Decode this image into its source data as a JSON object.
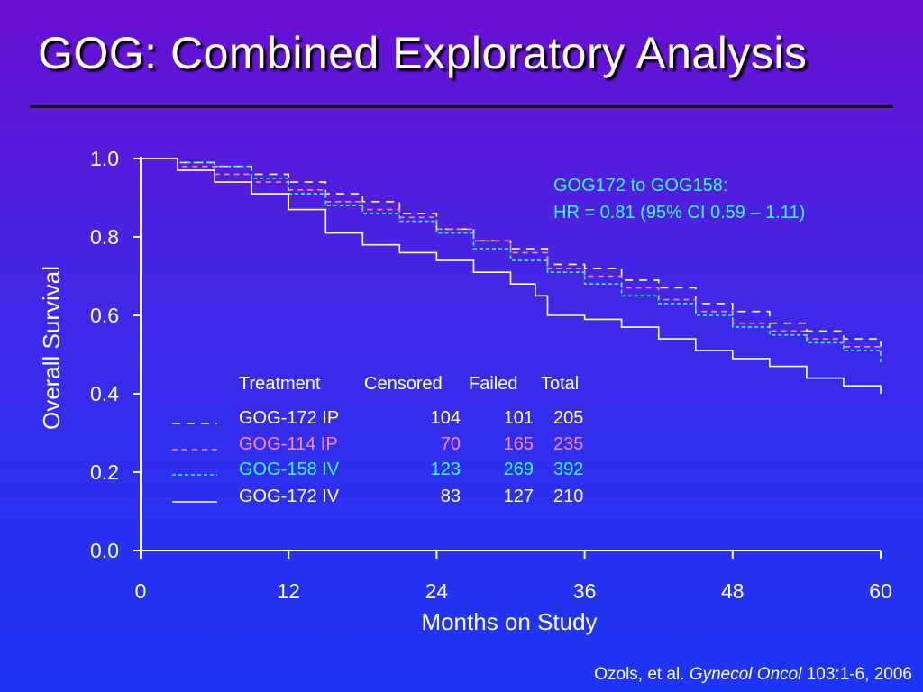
{
  "slide": {
    "title": "GOG:  Combined Exploratory Analysis",
    "citation_authors": "Ozols, et al.",
    "citation_journal": "Gynecol Oncol",
    "citation_ref": "103:1-6, 2006"
  },
  "colors": {
    "axis": "#ffffff",
    "gog172ip": "#ffff66",
    "gog114ip": "#ff88cc",
    "gog158iv": "#33ffdd",
    "gog172iv": "#ffffff"
  },
  "chart_data": {
    "type": "line",
    "xlabel": "Months on Study",
    "ylabel": "Overall Survival",
    "xlim": [
      0,
      60
    ],
    "ylim": [
      0,
      1.0
    ],
    "x_ticks": [
      "0",
      "12",
      "24",
      "36",
      "48",
      "60"
    ],
    "y_ticks": [
      "0.0",
      "0.2",
      "0.4",
      "0.6",
      "0.8",
      "1.0"
    ],
    "annotation": [
      "GOG172 to GOG158:",
      "HR = 0.81 (95% CI 0.59 – 1.11)"
    ],
    "table_headers": [
      "Treatment",
      "Censored",
      "Failed",
      "Total"
    ],
    "series": [
      {
        "name": "GOG-172 IP",
        "censored": "104",
        "failed": "101",
        "total": "205",
        "color": "#ffff66",
        "dash": "long",
        "x": [
          0,
          3,
          6,
          9,
          12,
          15,
          18,
          21,
          24,
          27,
          30,
          33,
          36,
          39,
          42,
          45,
          48,
          51,
          54,
          57,
          60
        ],
        "y": [
          1.0,
          0.99,
          0.98,
          0.96,
          0.94,
          0.91,
          0.89,
          0.86,
          0.82,
          0.79,
          0.77,
          0.73,
          0.72,
          0.69,
          0.67,
          0.63,
          0.61,
          0.58,
          0.56,
          0.54,
          0.52
        ]
      },
      {
        "name": "GOG-114 IP",
        "censored": "70",
        "failed": "165",
        "total": "235",
        "color": "#ff88cc",
        "dash": "medium",
        "x": [
          0,
          3,
          6,
          9,
          12,
          15,
          18,
          21,
          24,
          27,
          30,
          33,
          36,
          39,
          42,
          45,
          48,
          51,
          54,
          57,
          60
        ],
        "y": [
          1.0,
          0.98,
          0.96,
          0.94,
          0.92,
          0.89,
          0.87,
          0.85,
          0.82,
          0.79,
          0.76,
          0.72,
          0.7,
          0.67,
          0.64,
          0.61,
          0.58,
          0.56,
          0.54,
          0.52,
          0.5
        ]
      },
      {
        "name": "GOG-158 IV",
        "censored": "123",
        "failed": "269",
        "total": "392",
        "color": "#33ffdd",
        "dash": "short",
        "x": [
          0,
          3,
          6,
          9,
          12,
          15,
          18,
          21,
          24,
          27,
          30,
          33,
          36,
          39,
          42,
          45,
          48,
          51,
          54,
          57,
          60
        ],
        "y": [
          1.0,
          0.99,
          0.98,
          0.95,
          0.91,
          0.88,
          0.86,
          0.84,
          0.81,
          0.77,
          0.74,
          0.71,
          0.68,
          0.65,
          0.63,
          0.6,
          0.57,
          0.55,
          0.53,
          0.51,
          0.48
        ]
      },
      {
        "name": "GOG-172 IV",
        "censored": "83",
        "failed": "127",
        "total": "210",
        "color": "#ffffff",
        "dash": "solid",
        "x": [
          0,
          3,
          6,
          9,
          12,
          15,
          18,
          21,
          24,
          27,
          30,
          32,
          33,
          36,
          39,
          42,
          45,
          48,
          51,
          54,
          57,
          60
        ],
        "y": [
          1.0,
          0.97,
          0.94,
          0.91,
          0.87,
          0.81,
          0.78,
          0.76,
          0.74,
          0.71,
          0.68,
          0.65,
          0.6,
          0.59,
          0.57,
          0.54,
          0.51,
          0.49,
          0.47,
          0.44,
          0.42,
          0.4
        ]
      }
    ]
  }
}
